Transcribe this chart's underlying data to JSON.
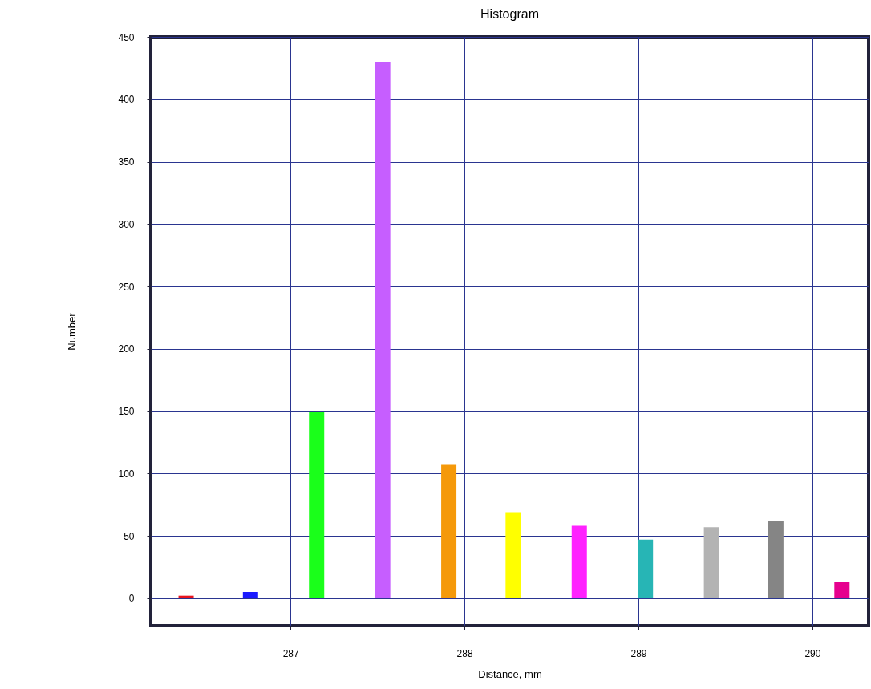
{
  "chart_data": {
    "type": "bar",
    "title": "Histogram",
    "xlabel": "Distance, mm",
    "ylabel": "Number",
    "x": [
      286.4,
      286.77,
      287.15,
      287.53,
      287.91,
      288.28,
      288.66,
      289.04,
      289.42,
      289.79,
      290.17
    ],
    "values": [
      2,
      5,
      149,
      430,
      107,
      69,
      58,
      47,
      57,
      62,
      13
    ],
    "colors": [
      "#e8141e",
      "#1a1aff",
      "#1aff1a",
      "#c65eff",
      "#f5990a",
      "#ffff00",
      "#ff22ff",
      "#27b5b5",
      "#b3b3b3",
      "#858585",
      "#e6008e"
    ],
    "xlim": [
      286.22,
      290.3
    ],
    "xticks": [
      287,
      288,
      289,
      290
    ],
    "ylim": [
      -22,
      450
    ],
    "yticks": [
      0,
      50,
      100,
      150,
      200,
      250,
      300,
      350,
      400,
      450
    ],
    "grid": true
  }
}
